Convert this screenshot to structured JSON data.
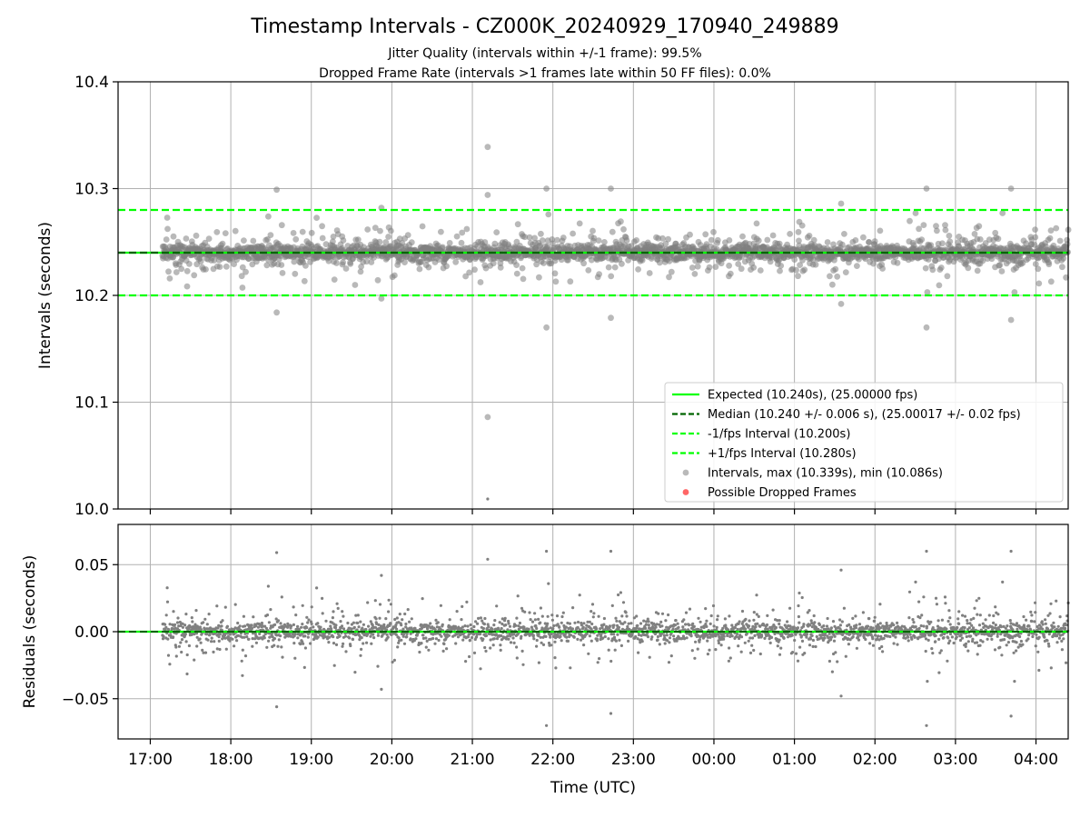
{
  "chart_data": {
    "type": "scatter",
    "title": "Timestamp Intervals - CZ000K_20240929_170940_249889",
    "subtitles": [
      "Jitter Quality (intervals within +/-1 frame): 99.5%",
      "Dropped Frame Rate (intervals >1 frames late within 50 FF files): 0.0%"
    ],
    "xlabel": "Time (UTC)",
    "x_ticks": [
      "17:00",
      "18:00",
      "19:00",
      "20:00",
      "21:00",
      "22:00",
      "23:00",
      "00:00",
      "01:00",
      "02:00",
      "03:00",
      "04:00"
    ],
    "x_range_hours": [
      16.6,
      28.4
    ],
    "data_x_range_hours": [
      17.15,
      28.4
    ],
    "grid": true,
    "colors": {
      "expected": "#00ff00",
      "median": "#006400",
      "interval_bounds": "#00ff00",
      "points": "#808080",
      "dropped": "#ff0000"
    },
    "top_panel": {
      "ylabel": "Intervals (seconds)",
      "ylim": [
        10.0,
        10.4
      ],
      "y_ticks": [
        "10.0",
        "10.1",
        "10.2",
        "10.3",
        "10.4"
      ],
      "expected": 10.24,
      "median": 10.24,
      "lower_bound": 10.2,
      "upper_bound": 10.28,
      "max": 10.339,
      "min": 10.086,
      "typical_spread": 0.006,
      "legend_position": "lower-right",
      "legend": [
        "Expected (10.240s), (25.00000 fps)",
        "Median (10.240 +/- 0.006 s), (25.00017 +/- 0.02 fps)",
        "-1/fps Interval (10.200s)",
        "+1/fps Interval (10.280s)",
        "Intervals, max (10.339s), min (10.086s)",
        "Possible Dropped Frames"
      ],
      "outliers": [
        {
          "t": 18.57,
          "v": 10.299
        },
        {
          "t": 18.57,
          "v": 10.184
        },
        {
          "t": 19.87,
          "v": 10.282
        },
        {
          "t": 19.87,
          "v": 10.197
        },
        {
          "t": 21.19,
          "v": 10.339
        },
        {
          "t": 21.19,
          "v": 10.294
        },
        {
          "t": 21.19,
          "v": 10.086
        },
        {
          "t": 21.92,
          "v": 10.3
        },
        {
          "t": 21.92,
          "v": 10.17
        },
        {
          "t": 22.72,
          "v": 10.3
        },
        {
          "t": 22.72,
          "v": 10.179
        },
        {
          "t": 25.58,
          "v": 10.286
        },
        {
          "t": 25.58,
          "v": 10.192
        },
        {
          "t": 26.64,
          "v": 10.3
        },
        {
          "t": 26.64,
          "v": 10.17
        },
        {
          "t": 27.69,
          "v": 10.3
        },
        {
          "t": 27.69,
          "v": 10.177
        }
      ]
    },
    "bottom_panel": {
      "ylabel": "Residuals (seconds)",
      "ylim": [
        -0.08,
        0.08
      ],
      "y_ticks": [
        "−0.05",
        "0.00",
        "0.05"
      ],
      "y_tick_values": [
        -0.05,
        0.0,
        0.05
      ],
      "zero_line": 0.0
    }
  }
}
